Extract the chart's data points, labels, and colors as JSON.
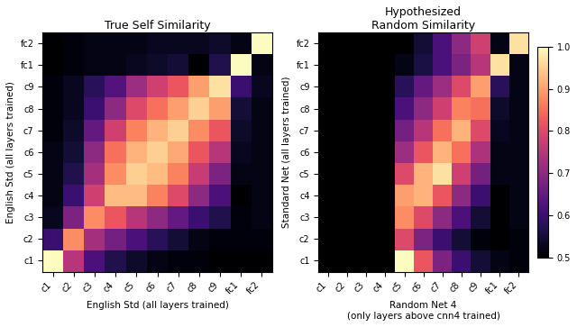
{
  "labels_y": [
    "fc2",
    "fc1",
    "c9",
    "c8",
    "c7",
    "c6",
    "c5",
    "c4",
    "c3",
    "c2",
    "c1"
  ],
  "labels_x": [
    "c1",
    "c2",
    "c3",
    "c4",
    "c5",
    "c6",
    "c7",
    "c8",
    "c9",
    "fc1",
    "fc2"
  ],
  "title_left": "True Self Similarity",
  "title_right": "Hypothesized\nRandom Similarity",
  "xlabel_left": "English Std (all layers trained)",
  "ylabel_left": "English Std (all layers trained)",
  "xlabel_right": "Random Net 4\n(only layers above cnn4 trained)",
  "ylabel_right": "Standard Net (all layers trained)",
  "cmap": "magma",
  "vmin": 0.5,
  "vmax": 1.0,
  "left_matrix": [
    [
      0.5,
      0.51,
      0.52,
      0.52,
      0.52,
      0.53,
      0.53,
      0.53,
      0.54,
      0.52,
      1.0
    ],
    [
      0.5,
      0.51,
      0.52,
      0.52,
      0.53,
      0.54,
      0.55,
      0.5,
      0.57,
      1.0,
      0.52
    ],
    [
      0.51,
      0.53,
      0.58,
      0.63,
      0.72,
      0.78,
      0.82,
      0.9,
      0.97,
      0.6,
      0.53
    ],
    [
      0.51,
      0.53,
      0.6,
      0.7,
      0.8,
      0.85,
      0.9,
      0.95,
      0.9,
      0.55,
      0.52
    ],
    [
      0.51,
      0.54,
      0.65,
      0.78,
      0.87,
      0.92,
      0.95,
      0.88,
      0.82,
      0.54,
      0.52
    ],
    [
      0.52,
      0.55,
      0.7,
      0.85,
      0.92,
      0.95,
      0.91,
      0.82,
      0.75,
      0.53,
      0.52
    ],
    [
      0.52,
      0.57,
      0.73,
      0.88,
      0.95,
      0.93,
      0.87,
      0.77,
      0.68,
      0.52,
      0.52
    ],
    [
      0.52,
      0.6,
      0.78,
      0.93,
      0.93,
      0.87,
      0.8,
      0.7,
      0.62,
      0.5,
      0.52
    ],
    [
      0.53,
      0.68,
      0.88,
      0.82,
      0.75,
      0.7,
      0.65,
      0.6,
      0.57,
      0.51,
      0.52
    ],
    [
      0.6,
      0.88,
      0.73,
      0.67,
      0.62,
      0.58,
      0.55,
      0.52,
      0.51,
      0.51,
      0.51
    ],
    [
      1.0,
      0.75,
      0.62,
      0.57,
      0.54,
      0.52,
      0.51,
      0.51,
      0.5,
      0.5,
      0.5
    ]
  ],
  "right_matrix_raw": [
    [
      0.0,
      0.0,
      0.0,
      0.0,
      0.0,
      0.55,
      0.62,
      0.7,
      0.78,
      0.52,
      0.97
    ],
    [
      0.0,
      0.0,
      0.0,
      0.0,
      0.52,
      0.56,
      0.62,
      0.68,
      0.75,
      0.97,
      0.52
    ],
    [
      0.0,
      0.0,
      0.0,
      0.0,
      0.58,
      0.65,
      0.72,
      0.8,
      0.9,
      0.58,
      0.52
    ],
    [
      0.0,
      0.0,
      0.0,
      0.0,
      0.62,
      0.7,
      0.78,
      0.87,
      0.85,
      0.54,
      0.52
    ],
    [
      0.0,
      0.0,
      0.0,
      0.0,
      0.67,
      0.75,
      0.85,
      0.92,
      0.8,
      0.53,
      0.52
    ],
    [
      0.0,
      0.0,
      0.0,
      0.0,
      0.72,
      0.82,
      0.92,
      0.85,
      0.74,
      0.52,
      0.52
    ],
    [
      0.0,
      0.0,
      0.0,
      0.0,
      0.8,
      0.92,
      0.97,
      0.78,
      0.67,
      0.52,
      0.52
    ],
    [
      0.0,
      0.0,
      0.0,
      0.0,
      0.9,
      0.92,
      0.82,
      0.7,
      0.6,
      0.5,
      0.52
    ],
    [
      0.0,
      0.0,
      0.0,
      0.0,
      0.88,
      0.8,
      0.7,
      0.62,
      0.55,
      0.5,
      0.52
    ],
    [
      0.0,
      0.0,
      0.0,
      0.0,
      0.8,
      0.68,
      0.6,
      0.55,
      0.51,
      0.5,
      0.51
    ],
    [
      0.0,
      0.0,
      0.0,
      0.0,
      1.0,
      0.82,
      0.68,
      0.6,
      0.55,
      0.52,
      0.51
    ]
  ]
}
